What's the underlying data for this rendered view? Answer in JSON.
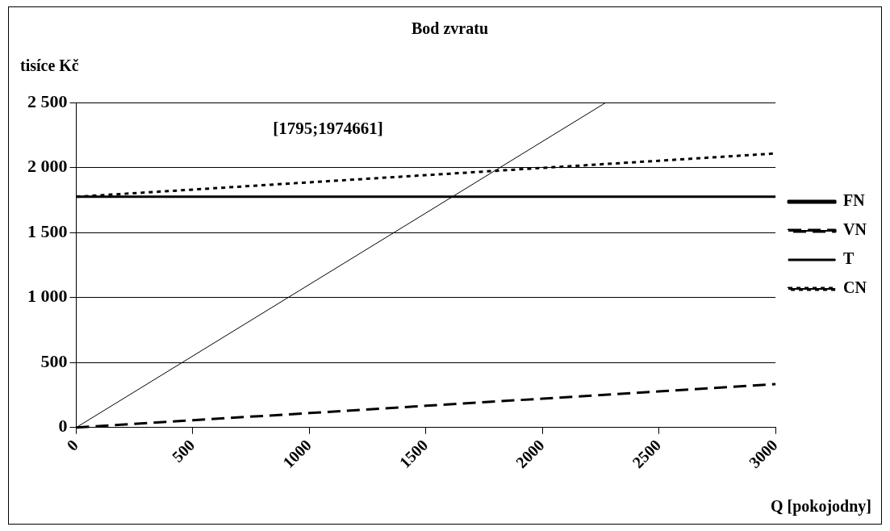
{
  "chart_data": {
    "type": "line",
    "title": "Bod zvratu",
    "ylabel": "tisíce Kč",
    "xlabel": "Q [pokojodny]",
    "xlim": [
      0,
      3000
    ],
    "xticks": [
      0,
      500,
      1000,
      1500,
      2000,
      2500,
      3000
    ],
    "ylim": [
      0,
      2500
    ],
    "yticks": [
      0,
      {
        "value": 500,
        "label": "500"
      },
      {
        "value": 1000,
        "label": "1 000"
      },
      {
        "value": 1500,
        "label": "1 500"
      },
      {
        "value": 2000,
        "label": "2 000"
      },
      {
        "value": 2500,
        "label": "2 500"
      }
    ],
    "grid": "y",
    "legend": "right",
    "marker": "none",
    "annotations": [
      "[1795;1974661]"
    ],
    "series": [
      {
        "name": "FN",
        "color": "#000000",
        "line_style": "solid",
        "x": [
          0,
          3000
        ],
        "values": [
          1775,
          1775
        ]
      },
      {
        "name": "VN",
        "color": "#000000",
        "line_style": "dashed",
        "x": [
          0,
          500,
          1000,
          1500,
          2000,
          2500,
          3000
        ],
        "values": [
          0,
          56,
          111,
          167,
          222,
          278,
          333
        ]
      },
      {
        "name": "T",
        "color": "#000000",
        "line_style": "solid",
        "x": [
          0,
          2270
        ],
        "values": [
          0,
          2497
        ]
      },
      {
        "name": "CN",
        "color": "#000000",
        "line_style": "dotted",
        "x": [
          0,
          500,
          1000,
          1500,
          2000,
          2500,
          3000
        ],
        "values": [
          1775,
          1830,
          1886,
          1941,
          1997,
          2052,
          2108
        ]
      }
    ]
  }
}
